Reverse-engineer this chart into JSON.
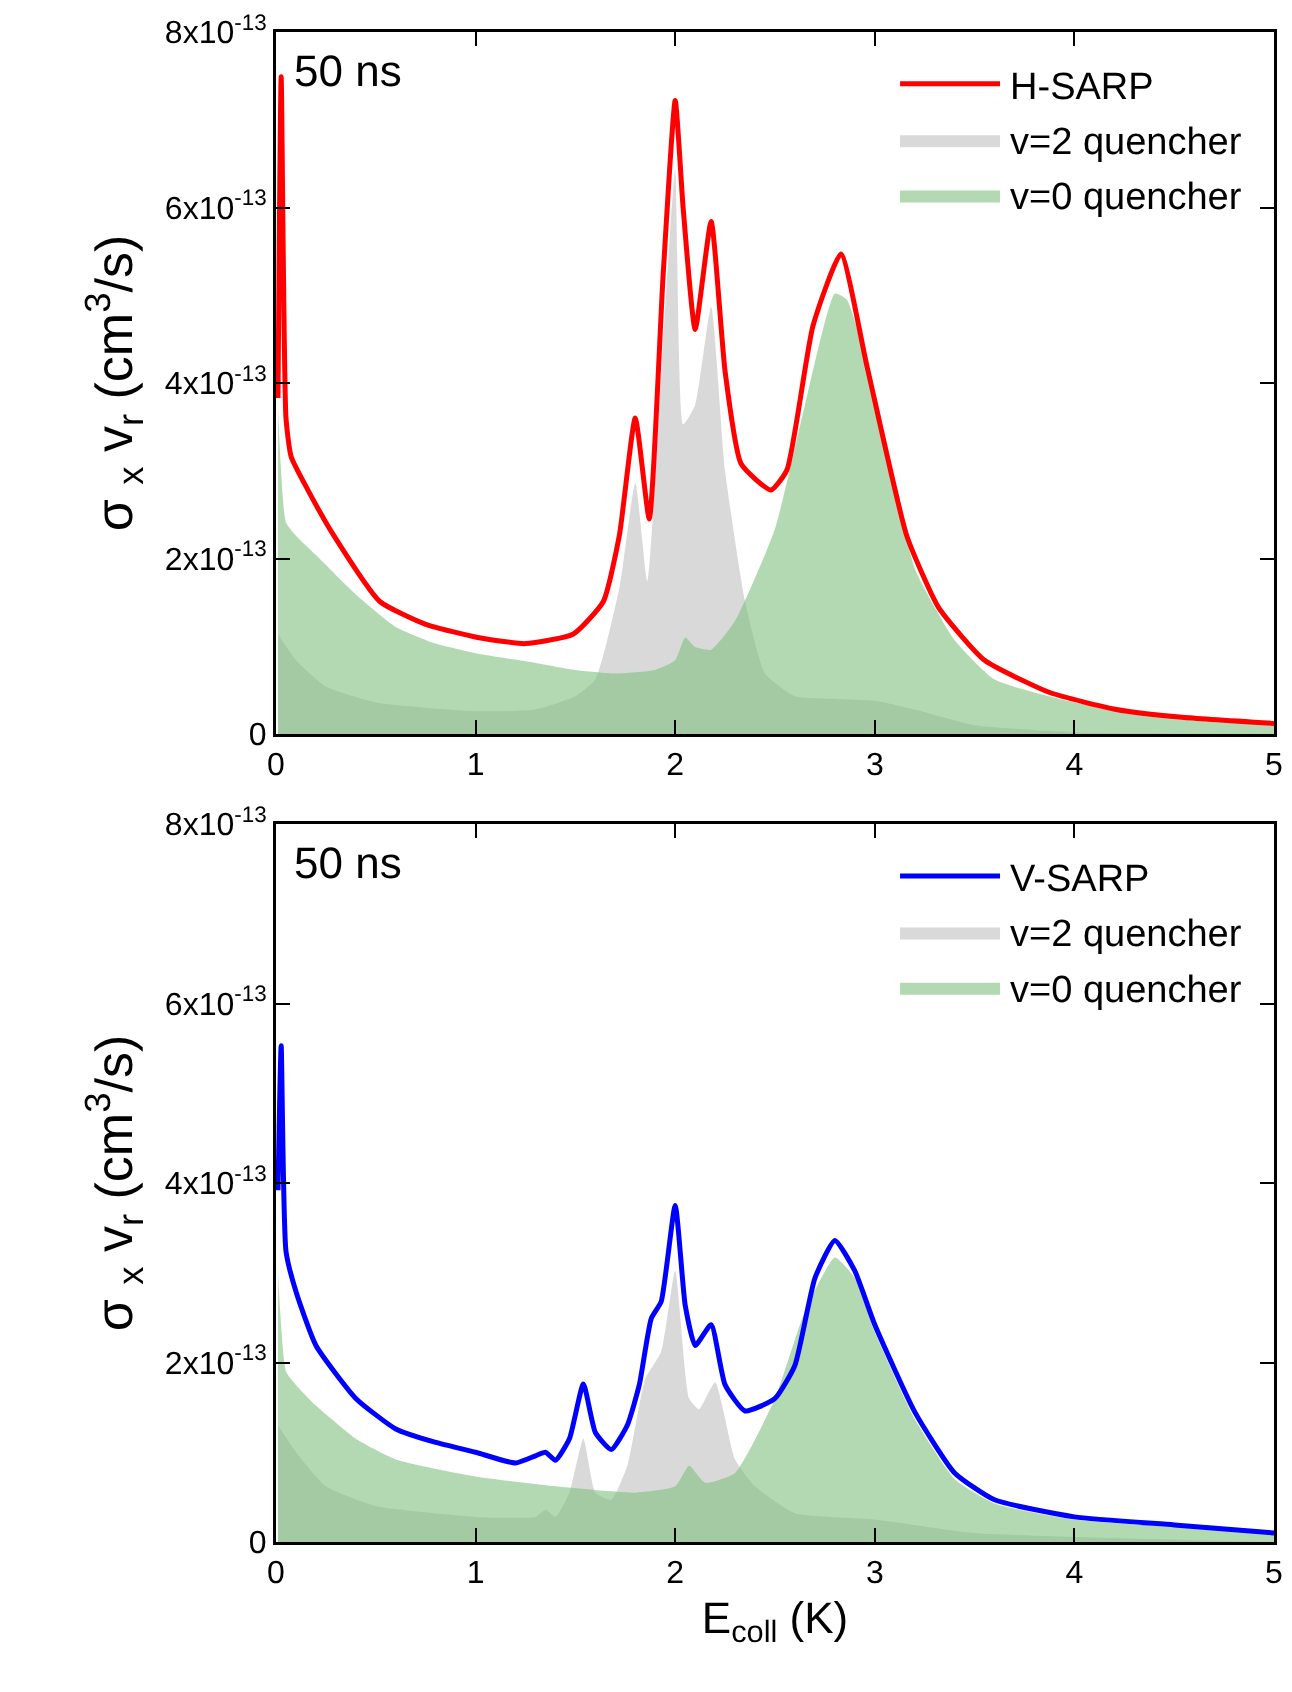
{
  "chart_data": [
    {
      "type": "line",
      "ylabel": "σ $_{x}$ v$_{r}$ (cm$^{3}$/s)",
      "annotations": [
        "50 ns"
      ],
      "legend": "top right",
      "grid": false,
      "xlim": [
        0,
        5
      ],
      "xticks": [
        0,
        1,
        2,
        3,
        4,
        5
      ],
      "ylim": [
        0,
        8e-13
      ],
      "yticks": [
        {
          "value": 0,
          "label": "0"
        },
        {
          "value": 2e-13,
          "label": "2x10$^{-13}$"
        },
        {
          "value": 4e-13,
          "label": "4x10$^{-13}$"
        },
        {
          "value": 6e-13,
          "label": "6x10$^{-13}$"
        },
        {
          "value": 8e-13,
          "label": "8x10$^{-13}$"
        }
      ],
      "series": [
        {
          "name": "H-SARP",
          "color": "#ff0000",
          "x": [
            0.01,
            0.026,
            0.05,
            0.076,
            0.16,
            0.29,
            0.52,
            0.75,
            1.01,
            1.25,
            1.49,
            1.64,
            1.72,
            1.8,
            1.87,
            1.94,
            2.0,
            2.04,
            2.1,
            2.18,
            2.25,
            2.33,
            2.48,
            2.56,
            2.69,
            2.83,
            2.96,
            3.16,
            3.32,
            3.55,
            3.88,
            4.21,
            4.54,
            5.0
          ],
          "values": [
            3.83e-13,
            7.49e-13,
            3.6e-13,
            3.16e-13,
            2.78e-13,
            2.26e-13,
            1.51e-13,
            1.25e-13,
            1.1e-13,
            1.03e-13,
            1.14e-13,
            1.51e-13,
            2.26e-13,
            3.6e-13,
            2.45e-13,
            5.25e-13,
            7.22e-13,
            5.99e-13,
            4.61e-13,
            5.84e-13,
            4.13e-13,
            3.08e-13,
            2.78e-13,
            3.01e-13,
            4.65e-13,
            5.47e-13,
            4.2e-13,
            2.26e-13,
            1.44e-13,
            8.4e-14,
            4.7e-14,
            2.8e-14,
            1.9e-14,
            1.2e-14
          ]
        },
        {
          "name": "v=2 quencher",
          "type": "area",
          "color": "#d9d9d9",
          "x": [
            0.01,
            0.1,
            0.25,
            0.5,
            1.0,
            1.3,
            1.5,
            1.6,
            1.72,
            1.8,
            1.86,
            1.94,
            2.0,
            2.04,
            2.1,
            2.18,
            2.25,
            2.35,
            2.45,
            2.6,
            2.8,
            3.0,
            3.2,
            3.5,
            4.0,
            5.0
          ],
          "values": [
            1.14e-13,
            8.4e-14,
            5.4e-14,
            3.6e-14,
            2.6e-14,
            2.8e-14,
            4.3e-14,
            6.2e-14,
            1.66e-13,
            2.86e-13,
            1.74e-13,
            4.5e-13,
            6.44e-13,
            3.53e-13,
            3.75e-13,
            4.87e-13,
            3e-13,
            1.51e-13,
            6.9e-14,
            4.3e-14,
            4e-14,
            3.8e-14,
            2.8e-14,
            1e-14,
            2e-15,
            0
          ]
        },
        {
          "name": "v=0 quencher",
          "type": "area",
          "color": "#b3d9b3",
          "x": [
            0.01,
            0.05,
            0.1,
            0.2,
            0.4,
            0.6,
            0.8,
            1.0,
            1.3,
            1.5,
            1.7,
            1.9,
            2.0,
            2.05,
            2.1,
            2.18,
            2.3,
            2.5,
            2.65,
            2.8,
            2.86,
            3.0,
            3.2,
            3.4,
            3.6,
            4.0,
            4.5,
            5.0
          ],
          "values": [
            3.7e-13,
            2.41e-13,
            2.26e-13,
            2.04e-13,
            1.59e-13,
            1.22e-13,
            1.03e-13,
            9.2e-14,
            8.1e-14,
            7.3e-14,
            6.9e-14,
            7.3e-14,
            8.4e-14,
            1.1e-13,
            9.9e-14,
            9.6e-14,
            1.29e-13,
            2.34e-13,
            3.75e-13,
            5.02e-13,
            4.95e-13,
            3.9e-13,
            1.89e-13,
            1.07e-13,
            6.2e-14,
            3.6e-14,
            2.1e-14,
            1e-14
          ]
        }
      ]
    },
    {
      "type": "line",
      "xlabel": "E$_{coll}$ (K)",
      "ylabel": "σ $_{x}$ v$_{r}$ (cm$^{3}$/s)",
      "annotations": [
        "50 ns"
      ],
      "legend": "top right",
      "grid": false,
      "xlim": [
        0,
        5
      ],
      "xticks": [
        0,
        1,
        2,
        3,
        4,
        5
      ],
      "ylim": [
        0,
        8e-13
      ],
      "yticks": [
        {
          "value": 0,
          "label": "0"
        },
        {
          "value": 2e-13,
          "label": "2x10$^{-13}$"
        },
        {
          "value": 4e-13,
          "label": "4x10$^{-13}$"
        },
        {
          "value": 6e-13,
          "label": "6x10$^{-13}$"
        },
        {
          "value": 8e-13,
          "label": "8x10$^{-13}$"
        }
      ],
      "series": [
        {
          "name": "V-SARP",
          "color": "#0000ff",
          "x": [
            0.01,
            0.026,
            0.05,
            0.1,
            0.2,
            0.4,
            0.6,
            0.8,
            1.0,
            1.2,
            1.3,
            1.35,
            1.4,
            1.47,
            1.54,
            1.6,
            1.68,
            1.76,
            1.82,
            1.88,
            1.93,
            2.0,
            2.05,
            2.1,
            2.18,
            2.25,
            2.35,
            2.5,
            2.6,
            2.7,
            2.8,
            2.9,
            3.0,
            3.2,
            3.4,
            3.6,
            4.0,
            4.5,
            5.0
          ],
          "values": [
            3.92e-13,
            5.53e-13,
            3.24e-13,
            2.79e-13,
            2.19e-13,
            1.6e-13,
            1.26e-13,
            1.11e-13,
            1e-13,
            8.8e-14,
            9.6e-14,
            1e-13,
            9.1e-14,
            1.15e-13,
            1.76e-13,
            1.22e-13,
            1.03e-13,
            1.3e-13,
            1.75e-13,
            2.49e-13,
            2.68e-13,
            3.75e-13,
            2.64e-13,
            2.19e-13,
            2.42e-13,
            1.75e-13,
            1.46e-13,
            1.6e-13,
            1.97e-13,
            2.94e-13,
            3.36e-13,
            3.02e-13,
            2.42e-13,
            1.45e-13,
            7.7e-14,
            4.7e-14,
            2.8e-14,
            1.9e-14,
            1e-14
          ]
        },
        {
          "name": "v=2 quencher",
          "type": "area",
          "color": "#d9d9d9",
          "x": [
            0.01,
            0.1,
            0.25,
            0.5,
            1.0,
            1.3,
            1.35,
            1.4,
            1.47,
            1.54,
            1.6,
            1.68,
            1.76,
            1.85,
            1.93,
            2.0,
            2.07,
            2.12,
            2.2,
            2.3,
            2.4,
            2.6,
            3.0,
            3.5,
            5.0
          ],
          "values": [
            1.3e-13,
            1e-13,
            6.2e-14,
            4e-14,
            2.8e-14,
            2.8e-14,
            3.6e-14,
            2.8e-14,
            5.5e-14,
            1.15e-13,
            5.5e-14,
            4.7e-14,
            8.5e-14,
            1.82e-13,
            2.12e-13,
            3.02e-13,
            1.6e-13,
            1.48e-13,
            1.78e-13,
            9.2e-14,
            6.2e-14,
            3.2e-14,
            2.5e-14,
            1e-14,
            0
          ]
        },
        {
          "name": "v=0 quencher",
          "type": "area",
          "color": "#b3d9b3",
          "x": [
            0.01,
            0.05,
            0.1,
            0.2,
            0.4,
            0.6,
            1.0,
            1.4,
            1.8,
            2.0,
            2.07,
            2.15,
            2.3,
            2.5,
            2.65,
            2.8,
            2.9,
            3.0,
            3.2,
            3.4,
            3.6,
            4.0,
            5.0
          ],
          "values": [
            3e-13,
            1.9e-13,
            1.75e-13,
            1.52e-13,
            1.15e-13,
            9.2e-14,
            7.3e-14,
            6.2e-14,
            5.5e-14,
            6.2e-14,
            8.5e-14,
            6.6e-14,
            7.7e-14,
            1.6e-13,
            2.57e-13,
            3.17e-13,
            2.94e-13,
            2.34e-13,
            1.37e-13,
            7e-14,
            4.3e-14,
            2.5e-14,
            1e-14
          ]
        }
      ]
    }
  ]
}
